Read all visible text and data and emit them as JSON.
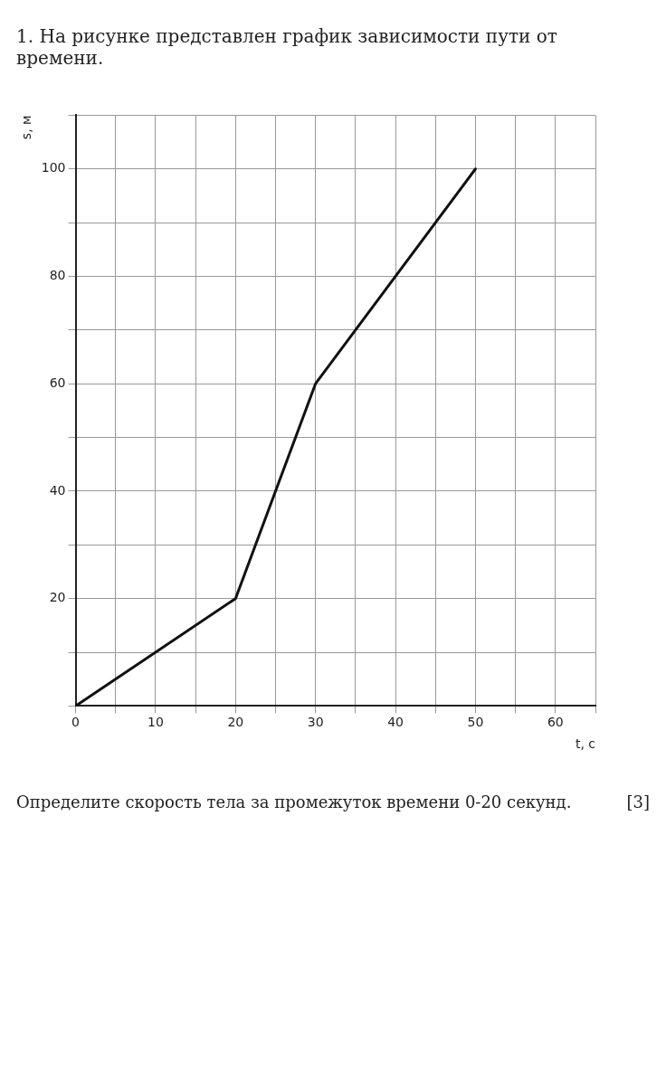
{
  "chart_data": {
    "type": "line",
    "title": "1. На рисунке представлен график зависимости пути от времени.",
    "xlabel": "t, с",
    "ylabel": "s, м",
    "x": [
      0,
      20,
      30,
      50
    ],
    "series": [
      {
        "color": "#111111",
        "values": [
          0,
          20,
          60,
          100
        ]
      }
    ],
    "xlim": [
      0,
      65
    ],
    "ylim": [
      0,
      110
    ],
    "xticks": [
      {
        "value": 0,
        "label": "0"
      },
      {
        "value": 5,
        "label": null
      },
      10,
      {
        "value": 15,
        "label": null
      },
      20,
      {
        "value": 25,
        "label": null
      },
      30,
      {
        "value": 35,
        "label": null
      },
      40,
      {
        "value": 45,
        "label": null
      },
      50,
      {
        "value": 55,
        "label": null
      },
      60,
      {
        "value": 65,
        "label": null
      }
    ],
    "yticks": [
      {
        "value": 0,
        "label": null
      },
      {
        "value": 10,
        "label": null
      },
      20,
      {
        "value": 30,
        "label": null
      },
      40,
      {
        "value": 50,
        "label": null
      },
      60,
      {
        "value": 70,
        "label": null
      },
      80,
      {
        "value": 90,
        "label": null
      },
      100,
      {
        "value": 110,
        "label": null
      }
    ],
    "grid": true,
    "marker": "none",
    "line_style": "solid",
    "legend": false,
    "annotations": [
      "Определите скорость тела за промежуток времени 0-20 секунд.",
      "[3]"
    ]
  }
}
